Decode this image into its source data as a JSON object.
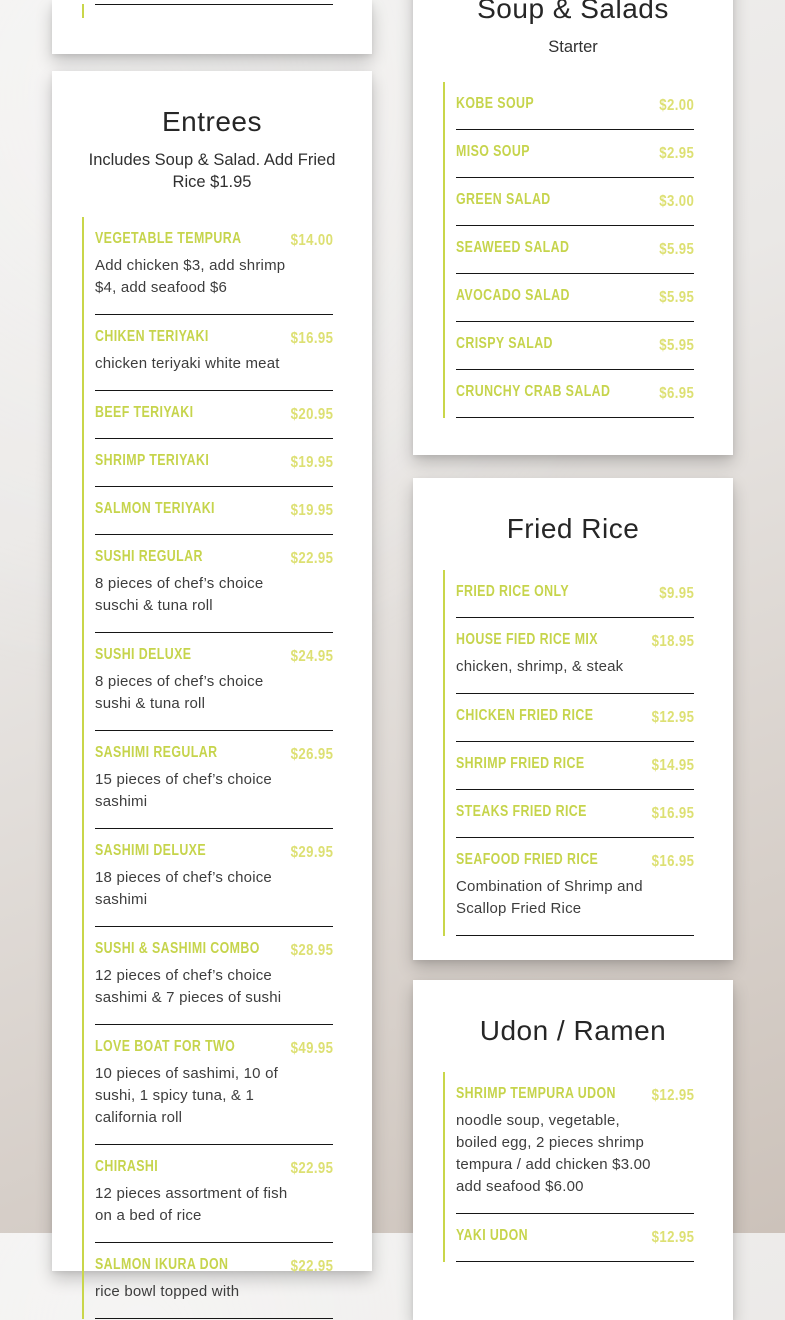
{
  "colors": {
    "accent_line": "#c9d64a",
    "accent_name": "#c6d44c",
    "accent_price": "#dde073",
    "divider": "#161616",
    "card_background": "#ffffff"
  },
  "cards": {
    "entrees": {
      "title": "Entrees",
      "subtitle": "Includes Soup & Salad. Add Fried Rice $1.95",
      "items": [
        {
          "name": "Vegetable Tempura",
          "price": "$14.00",
          "desc": "Add chicken $3, add shrimp $4, add seafood $6"
        },
        {
          "name": "Chiken Teriyaki",
          "price": "$16.95",
          "desc": "chicken teriyaki white meat"
        },
        {
          "name": "Beef Teriyaki",
          "price": "$20.95"
        },
        {
          "name": "Shrimp Teriyaki",
          "price": "$19.95"
        },
        {
          "name": "Salmon Teriyaki",
          "price": "$19.95"
        },
        {
          "name": "Sushi Regular",
          "price": "$22.95",
          "desc": "8 pieces of chef’s choice suschi & tuna roll"
        },
        {
          "name": "Sushi Deluxe",
          "price": "$24.95",
          "desc": "8 pieces of chef’s choice sushi & tuna roll"
        },
        {
          "name": "Sashimi Regular",
          "price": "$26.95",
          "desc": "15 pieces of chef’s choice sashimi"
        },
        {
          "name": "Sashimi Deluxe",
          "price": "$29.95",
          "desc": "18 pieces of chef’s choice sashimi"
        },
        {
          "name": "Sushi & Sashimi Combo",
          "price": "$28.95",
          "desc": "12 pieces of chef’s choice sashimi & 7 pieces of sushi"
        },
        {
          "name": "Love Boat for Two",
          "price": "$49.95",
          "desc": "10 pieces of sashimi, 10 of sushi, 1 spicy tuna, & 1 california roll"
        },
        {
          "name": "Chirashi",
          "price": "$22.95",
          "desc": "12 pieces assortment of fish on a bed of rice"
        },
        {
          "name": "Salmon Ikura Don",
          "price": "$22.95",
          "desc": "rice bowl topped with"
        }
      ]
    },
    "soup_salads": {
      "title": "Soup & Salads",
      "subtitle": "Starter",
      "items": [
        {
          "name": "Kobe Soup",
          "price": "$2.00"
        },
        {
          "name": "Miso Soup",
          "price": "$2.95"
        },
        {
          "name": "Green Salad",
          "price": "$3.00"
        },
        {
          "name": "Seaweed Salad",
          "price": "$5.95"
        },
        {
          "name": "Avocado Salad",
          "price": "$5.95"
        },
        {
          "name": "Crispy Salad",
          "price": "$5.95"
        },
        {
          "name": "Crunchy Crab Salad",
          "price": "$6.95"
        }
      ]
    },
    "fried_rice": {
      "title": "Fried Rice",
      "items": [
        {
          "name": "Fried Rice Only",
          "price": "$9.95"
        },
        {
          "name": "House Fied Rice Mix",
          "price": "$18.95",
          "desc": "chicken, shrimp, & steak"
        },
        {
          "name": "Chicken Fried Rice",
          "price": "$12.95"
        },
        {
          "name": "Shrimp Fried Rice",
          "price": "$14.95"
        },
        {
          "name": "Steaks Fried Rice",
          "price": "$16.95"
        },
        {
          "name": "Seafood Fried Rice",
          "price": "$16.95",
          "desc": "Combination of Shrimp and Scallop Fried Rice"
        }
      ]
    },
    "udon_ramen": {
      "title": "Udon / Ramen",
      "items": [
        {
          "name": "Shrimp Tempura Udon",
          "price": "$12.95",
          "desc": "noodle soup, vegetable, boiled egg, 2 pieces shrimp tempura / add chicken $3.00 add seafood $6.00"
        },
        {
          "name": "Yaki Udon",
          "price": "$12.95"
        }
      ]
    }
  }
}
